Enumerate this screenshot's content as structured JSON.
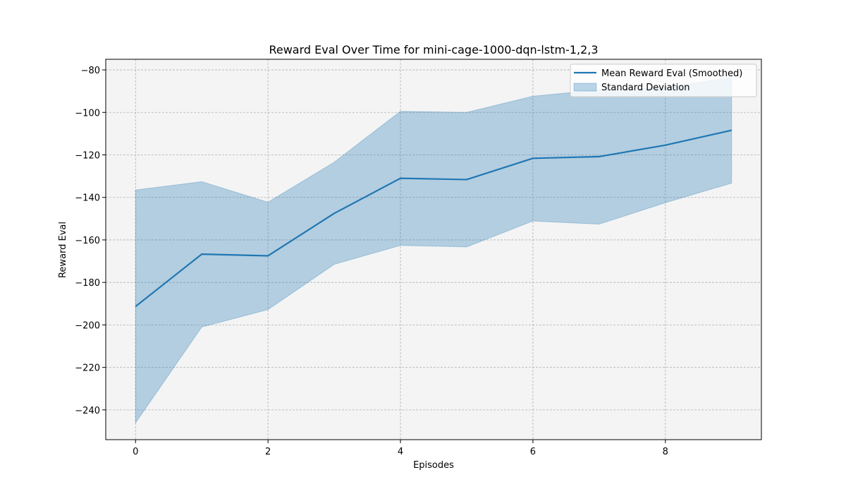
{
  "chart_data": {
    "type": "line",
    "title": "Reward Eval Over Time for mini-cage-1000-dqn-lstm-1,2,3",
    "xlabel": "Episodes",
    "ylabel": "Reward Eval",
    "xlim": [
      -0.45,
      9.45
    ],
    "ylim": [
      -254,
      -75
    ],
    "x_ticks": [
      0,
      2,
      4,
      6,
      8
    ],
    "y_ticks": [
      -240,
      -220,
      -200,
      -180,
      -160,
      -140,
      -120,
      -100,
      -80
    ],
    "grid": true,
    "legend_position": "top-right",
    "x": [
      0,
      1,
      2,
      3,
      4,
      5,
      6,
      7,
      8,
      9
    ],
    "series": [
      {
        "name": "Mean Reward Eval (Smoothed)",
        "values": [
          -191.3,
          -166.7,
          -167.5,
          -147.5,
          -131.0,
          -131.6,
          -121.6,
          -120.8,
          -115.4,
          -108.4
        ],
        "color": "#1f77b4"
      }
    ],
    "band": {
      "name": "Standard Deviation",
      "upper": [
        -136.5,
        -132.6,
        -142.3,
        -123.4,
        -99.5,
        -100.0,
        -92.4,
        -89.4,
        -88.2,
        -83.6
      ],
      "lower": [
        -246.1,
        -201.0,
        -192.8,
        -171.5,
        -162.6,
        -163.3,
        -151.1,
        -152.6,
        -142.5,
        -133.3
      ],
      "color": "#1f77b4",
      "opacity": 0.3
    }
  }
}
